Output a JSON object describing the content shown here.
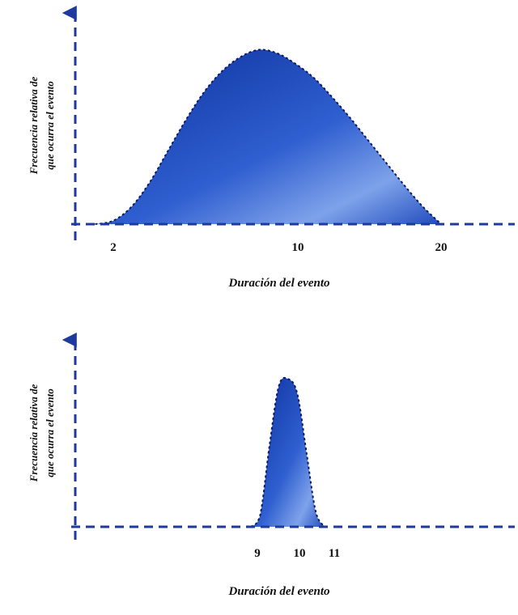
{
  "colors": {
    "axis": "#1e3a9e",
    "fill_dark": "#0b2f9a",
    "fill_mid": "#2f5fd0",
    "fill_light": "#7ea2ea",
    "outline": "#0d1a66",
    "text": "#111111"
  },
  "chart_data": [
    {
      "type": "area",
      "title": "",
      "xlabel": "Duración del evento",
      "ylabel": [
        "Frecuencia relativa de",
        "que ocurra el evento"
      ],
      "x_ticks": [
        "2",
        "10",
        "20"
      ],
      "xlim": [
        0,
        24
      ],
      "ylim": [
        0,
        1.1
      ],
      "grid": false,
      "series": [
        {
          "x": [
            1,
            2,
            3,
            4,
            5,
            6,
            7,
            8,
            9,
            10,
            11,
            12,
            13,
            14,
            15,
            16,
            17,
            18,
            19,
            20
          ],
          "values": [
            0.0,
            0.02,
            0.1,
            0.24,
            0.42,
            0.6,
            0.76,
            0.88,
            0.96,
            1.0,
            0.98,
            0.92,
            0.84,
            0.73,
            0.61,
            0.48,
            0.35,
            0.22,
            0.1,
            0.0
          ]
        }
      ]
    },
    {
      "type": "area",
      "title": "",
      "xlabel": "Duración del evento",
      "ylabel": [
        "Frecuencia relativa de",
        "que ocurra el evento"
      ],
      "x_ticks": [
        "9",
        "10",
        "11"
      ],
      "xlim": [
        4.3,
        16.1
      ],
      "ylim": [
        0,
        1.1
      ],
      "grid": false,
      "series": [
        {
          "x": [
            9.0,
            9.25,
            9.5,
            9.75,
            10.0,
            10.25,
            10.5,
            10.75,
            11.0
          ],
          "values": [
            0.0,
            0.08,
            0.55,
            0.95,
            1.0,
            0.9,
            0.5,
            0.1,
            0.0
          ]
        }
      ]
    }
  ]
}
